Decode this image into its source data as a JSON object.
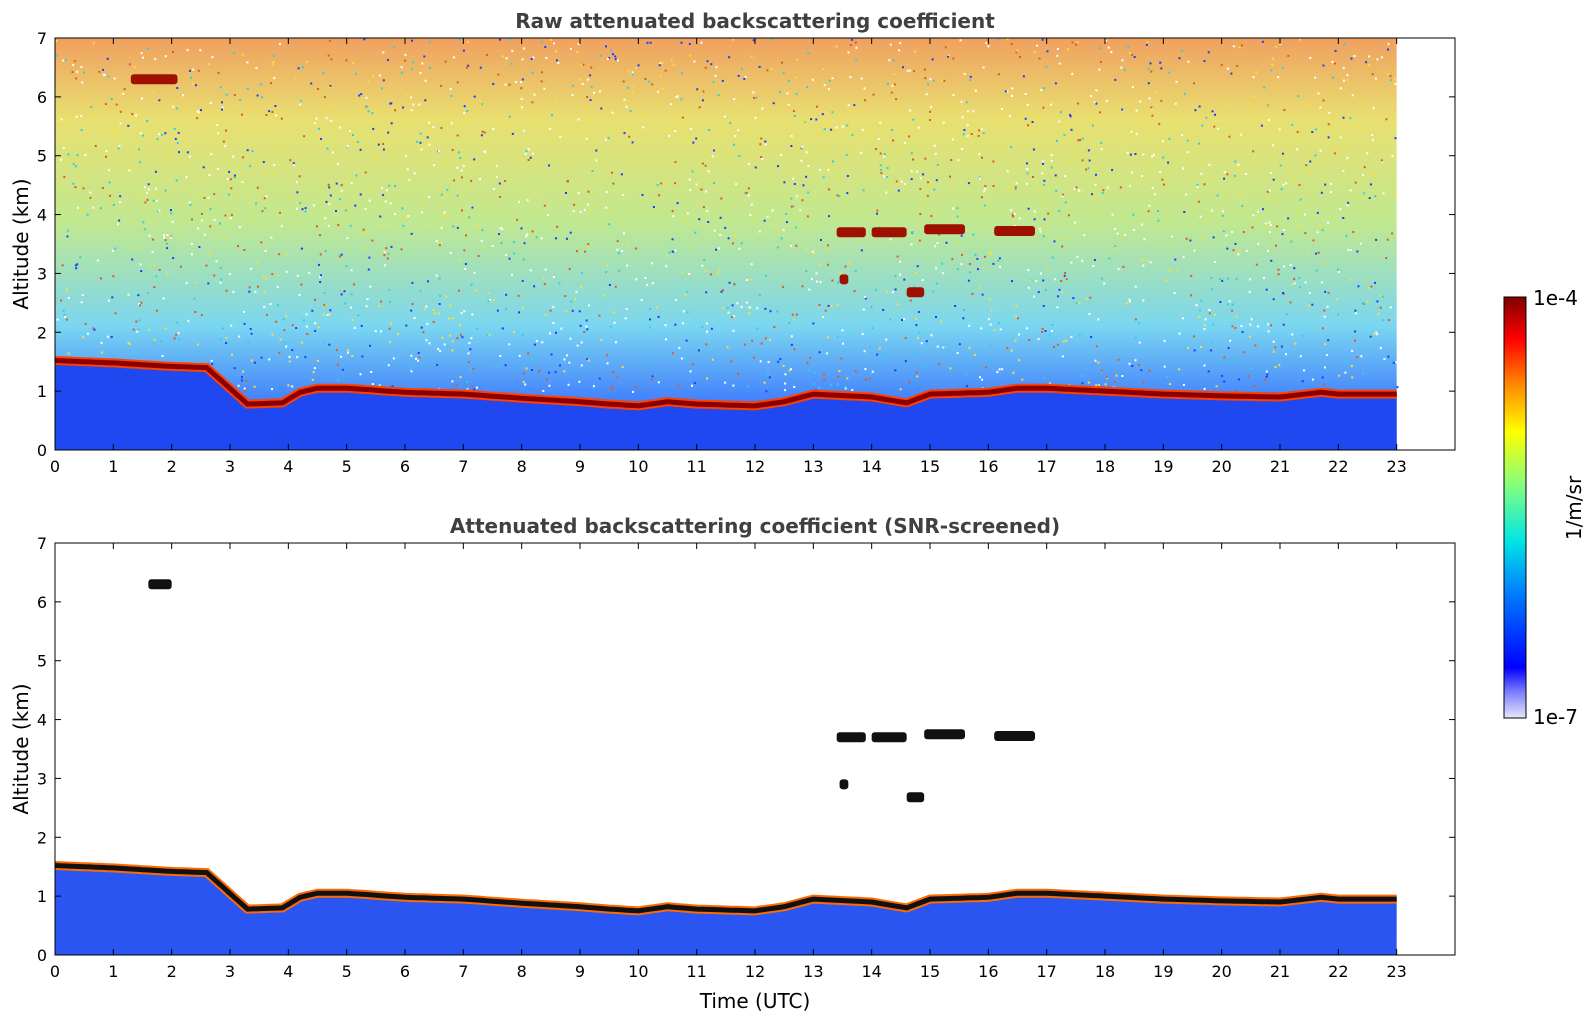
{
  "chart_data": [
    {
      "type": "heatmap",
      "title": "Raw attenuated backscattering coefficient",
      "xlabel": "",
      "ylabel": "Altitude (km)",
      "xlim": [
        0,
        24
      ],
      "ylim": [
        0,
        7
      ],
      "xticks": [
        "0",
        "1",
        "2",
        "3",
        "4",
        "5",
        "6",
        "7",
        "8",
        "9",
        "10",
        "11",
        "12",
        "13",
        "14",
        "15",
        "16",
        "17",
        "18",
        "19",
        "20",
        "21",
        "22",
        "23"
      ],
      "yticks": [
        "0",
        "1",
        "2",
        "3",
        "4",
        "5",
        "6",
        "7"
      ],
      "data_end_time": 23,
      "screened": false,
      "features": {
        "boundary_layer_top": [
          [
            0,
            1.52
          ],
          [
            1,
            1.48
          ],
          [
            2,
            1.42
          ],
          [
            2.6,
            1.4
          ],
          [
            3.3,
            0.78
          ],
          [
            3.9,
            0.8
          ],
          [
            4.2,
            0.98
          ],
          [
            4.5,
            1.05
          ],
          [
            5,
            1.05
          ],
          [
            6,
            0.98
          ],
          [
            7,
            0.95
          ],
          [
            7.7,
            0.9
          ],
          [
            8,
            0.88
          ],
          [
            9,
            0.82
          ],
          [
            9.5,
            0.78
          ],
          [
            10,
            0.75
          ],
          [
            10.5,
            0.82
          ],
          [
            11,
            0.78
          ],
          [
            12,
            0.75
          ],
          [
            12.5,
            0.82
          ],
          [
            13,
            0.95
          ],
          [
            14,
            0.9
          ],
          [
            14.6,
            0.8
          ],
          [
            15,
            0.95
          ],
          [
            16,
            0.98
          ],
          [
            16.5,
            1.05
          ],
          [
            17,
            1.05
          ],
          [
            18,
            1.0
          ],
          [
            19,
            0.95
          ],
          [
            20,
            0.92
          ],
          [
            21,
            0.9
          ],
          [
            21.7,
            0.98
          ],
          [
            22,
            0.95
          ],
          [
            23,
            0.95
          ]
        ],
        "cloud_layers": [
          {
            "t_start": 13.4,
            "t_end": 13.9,
            "altitude": 3.7
          },
          {
            "t_start": 14.0,
            "t_end": 14.6,
            "altitude": 3.7
          },
          {
            "t_start": 14.9,
            "t_end": 15.6,
            "altitude": 3.75
          },
          {
            "t_start": 16.1,
            "t_end": 16.8,
            "altitude": 3.72
          },
          {
            "t_start": 13.45,
            "t_end": 13.6,
            "altitude": 2.9
          },
          {
            "t_start": 14.6,
            "t_end": 14.9,
            "altitude": 2.68
          },
          {
            "t_start": 1.3,
            "t_end": 2.1,
            "altitude": 6.3
          }
        ]
      }
    },
    {
      "type": "heatmap",
      "title": "Attenuated backscattering coefficient (SNR-screened)",
      "xlabel": "Time (UTC)",
      "ylabel": "Altitude (km)",
      "xlim": [
        0,
        24
      ],
      "ylim": [
        0,
        7
      ],
      "xticks": [
        "0",
        "1",
        "2",
        "3",
        "4",
        "5",
        "6",
        "7",
        "8",
        "9",
        "10",
        "11",
        "12",
        "13",
        "14",
        "15",
        "16",
        "17",
        "18",
        "19",
        "20",
        "21",
        "22",
        "23"
      ],
      "yticks": [
        "0",
        "1",
        "2",
        "3",
        "4",
        "5",
        "6",
        "7"
      ],
      "data_end_time": 23,
      "screened": true,
      "features": {
        "boundary_layer_top": [
          [
            0,
            1.52
          ],
          [
            1,
            1.48
          ],
          [
            2,
            1.42
          ],
          [
            2.6,
            1.4
          ],
          [
            3.3,
            0.78
          ],
          [
            3.9,
            0.8
          ],
          [
            4.2,
            0.98
          ],
          [
            4.5,
            1.05
          ],
          [
            5,
            1.05
          ],
          [
            6,
            0.98
          ],
          [
            7,
            0.95
          ],
          [
            7.7,
            0.9
          ],
          [
            8,
            0.88
          ],
          [
            9,
            0.82
          ],
          [
            9.5,
            0.78
          ],
          [
            10,
            0.75
          ],
          [
            10.5,
            0.82
          ],
          [
            11,
            0.78
          ],
          [
            12,
            0.75
          ],
          [
            12.5,
            0.82
          ],
          [
            13,
            0.95
          ],
          [
            14,
            0.9
          ],
          [
            14.6,
            0.8
          ],
          [
            15,
            0.95
          ],
          [
            16,
            0.98
          ],
          [
            16.5,
            1.05
          ],
          [
            17,
            1.05
          ],
          [
            18,
            1.0
          ],
          [
            19,
            0.95
          ],
          [
            20,
            0.92
          ],
          [
            21,
            0.9
          ],
          [
            21.7,
            0.98
          ],
          [
            22,
            0.95
          ],
          [
            23,
            0.95
          ]
        ],
        "cloud_layers": [
          {
            "t_start": 13.4,
            "t_end": 13.9,
            "altitude": 3.7
          },
          {
            "t_start": 14.0,
            "t_end": 14.6,
            "altitude": 3.7
          },
          {
            "t_start": 14.9,
            "t_end": 15.6,
            "altitude": 3.75
          },
          {
            "t_start": 16.1,
            "t_end": 16.8,
            "altitude": 3.72
          },
          {
            "t_start": 13.45,
            "t_end": 13.6,
            "altitude": 2.9
          },
          {
            "t_start": 14.6,
            "t_end": 14.9,
            "altitude": 2.68
          },
          {
            "t_start": 1.6,
            "t_end": 2.0,
            "altitude": 6.3
          }
        ]
      }
    }
  ],
  "colorbar": {
    "label": "1/m/sr",
    "max_label": "1e-4",
    "min_label": "1e-7",
    "colors": [
      "#e6e6fa",
      "#0000ff",
      "#0080ff",
      "#00e5e5",
      "#80ff80",
      "#ffff00",
      "#ff8000",
      "#ff0000",
      "#800000"
    ]
  }
}
